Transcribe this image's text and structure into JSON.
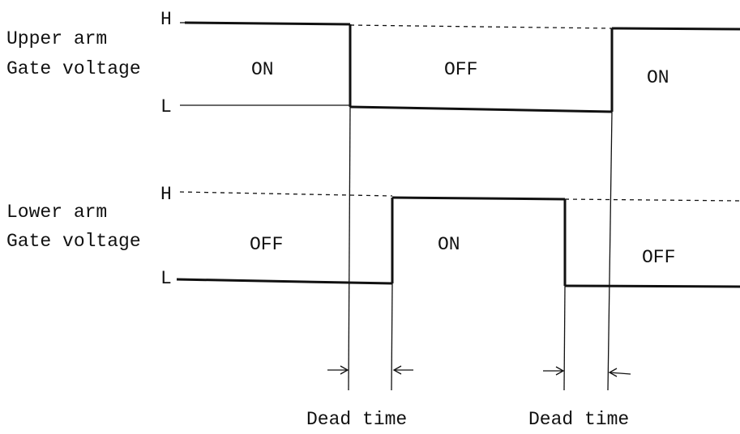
{
  "upper": {
    "label_line1": "Upper arm",
    "label_line2": "Gate voltage",
    "high": "H",
    "low": "L",
    "states": [
      "ON",
      "OFF",
      "ON"
    ]
  },
  "lower": {
    "label_line1": "Lower arm",
    "label_line2": "Gate voltage",
    "high": "H",
    "low": "L",
    "states": [
      "OFF",
      "ON",
      "OFF"
    ]
  },
  "dead_time_labels": [
    "Dead time",
    "Dead time"
  ]
}
